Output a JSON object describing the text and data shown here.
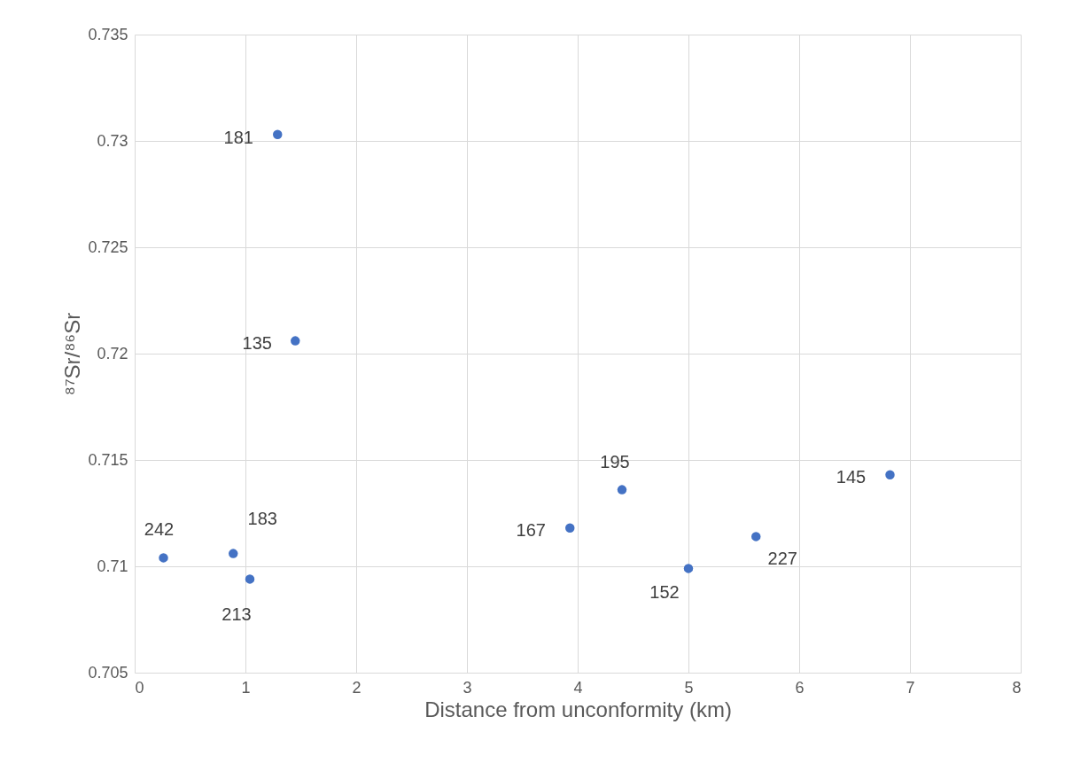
{
  "chart_data": {
    "type": "scatter",
    "xlabel": "Distance from unconformity (km)",
    "ylabel": "⁸⁷Sr/⁸⁶Sr",
    "x": [
      1.29,
      1.45,
      0.26,
      0.89,
      1.04,
      3.93,
      4.4,
      5.0,
      5.61,
      6.82
    ],
    "series": [
      {
        "color": "#4472c4",
        "values": [
          0.7303,
          0.7206,
          0.7104,
          0.7106,
          0.7094,
          0.7118,
          0.7136,
          0.7099,
          0.7114,
          0.7143
        ]
      }
    ],
    "annotations": [
      {
        "text": "181",
        "x": 1.29,
        "y": 0.7303
      },
      {
        "text": "135",
        "x": 1.45,
        "y": 0.7206
      },
      {
        "text": "242",
        "x": 0.26,
        "y": 0.7104
      },
      {
        "text": "183",
        "x": 0.89,
        "y": 0.7106
      },
      {
        "text": "213",
        "x": 1.04,
        "y": 0.7094
      },
      {
        "text": "167",
        "x": 3.93,
        "y": 0.7118
      },
      {
        "text": "195",
        "x": 4.4,
        "y": 0.7136
      },
      {
        "text": "152",
        "x": 5.0,
        "y": 0.7099
      },
      {
        "text": "227",
        "x": 5.61,
        "y": 0.7114
      },
      {
        "text": "145",
        "x": 6.82,
        "y": 0.7143
      }
    ],
    "xlim": [
      0,
      8
    ],
    "xticks": [
      0,
      1,
      2,
      3,
      4,
      5,
      6,
      7,
      8
    ],
    "ylim": [
      0.705,
      0.735
    ],
    "yticks": [
      0.705,
      0.71,
      0.715,
      0.72,
      0.725,
      0.73,
      0.735
    ],
    "grid": true,
    "marker": "circle"
  }
}
